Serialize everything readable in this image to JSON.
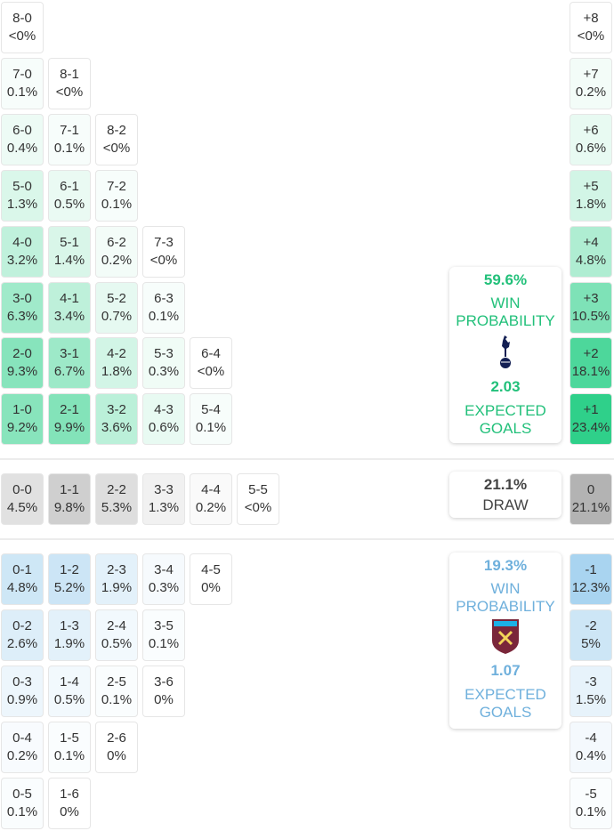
{
  "colors": {
    "home": "#2fd08a",
    "home_text": "#22c07a",
    "draw": "#b3b3b3",
    "away": "#a9d4f0",
    "away_text": "#6fb0dc"
  },
  "home_rows": [
    [
      [
        "8-0",
        "<0%",
        0
      ]
    ],
    [
      [
        "7-0",
        "0.1%",
        0.1
      ],
      [
        "8-1",
        "<0%",
        0
      ]
    ],
    [
      [
        "6-0",
        "0.4%",
        0.4
      ],
      [
        "7-1",
        "0.1%",
        0.1
      ],
      [
        "8-2",
        "<0%",
        0
      ]
    ],
    [
      [
        "5-0",
        "1.3%",
        1.3
      ],
      [
        "6-1",
        "0.5%",
        0.5
      ],
      [
        "7-2",
        "0.1%",
        0.1
      ]
    ],
    [
      [
        "4-0",
        "3.2%",
        3.2
      ],
      [
        "5-1",
        "1.4%",
        1.4
      ],
      [
        "6-2",
        "0.2%",
        0.2
      ],
      [
        "7-3",
        "<0%",
        0
      ]
    ],
    [
      [
        "3-0",
        "6.3%",
        6.3
      ],
      [
        "4-1",
        "3.4%",
        3.4
      ],
      [
        "5-2",
        "0.7%",
        0.7
      ],
      [
        "6-3",
        "0.1%",
        0.1
      ]
    ],
    [
      [
        "2-0",
        "9.3%",
        9.3
      ],
      [
        "3-1",
        "6.7%",
        6.7
      ],
      [
        "4-2",
        "1.8%",
        1.8
      ],
      [
        "5-3",
        "0.3%",
        0.3
      ],
      [
        "6-4",
        "<0%",
        0
      ]
    ],
    [
      [
        "1-0",
        "9.2%",
        9.2
      ],
      [
        "2-1",
        "9.9%",
        9.9
      ],
      [
        "3-2",
        "3.6%",
        3.6
      ],
      [
        "4-3",
        "0.6%",
        0.6
      ],
      [
        "5-4",
        "0.1%",
        0.1
      ]
    ]
  ],
  "home_margins": [
    [
      "+8",
      "<0%",
      0
    ],
    [
      "+7",
      "0.2%",
      0.2
    ],
    [
      "+6",
      "0.6%",
      0.6
    ],
    [
      "+5",
      "1.8%",
      1.8
    ],
    [
      "+4",
      "4.8%",
      4.8
    ],
    [
      "+3",
      "10.5%",
      10.5
    ],
    [
      "+2",
      "18.1%",
      18.1
    ],
    [
      "+1",
      "23.4%",
      23.4
    ]
  ],
  "draw_row": [
    [
      "0-0",
      "4.5%",
      4.5
    ],
    [
      "1-1",
      "9.8%",
      9.8
    ],
    [
      "2-2",
      "5.3%",
      5.3
    ],
    [
      "3-3",
      "1.3%",
      1.3
    ],
    [
      "4-4",
      "0.2%",
      0.2
    ],
    [
      "5-5",
      "<0%",
      0
    ]
  ],
  "draw_margin": [
    "0",
    "21.1%",
    21.1
  ],
  "away_rows": [
    [
      [
        "0-1",
        "4.8%",
        4.8
      ],
      [
        "1-2",
        "5.2%",
        5.2
      ],
      [
        "2-3",
        "1.9%",
        1.9
      ],
      [
        "3-4",
        "0.3%",
        0.3
      ],
      [
        "4-5",
        "0%",
        0
      ]
    ],
    [
      [
        "0-2",
        "2.6%",
        2.6
      ],
      [
        "1-3",
        "1.9%",
        1.9
      ],
      [
        "2-4",
        "0.5%",
        0.5
      ],
      [
        "3-5",
        "0.1%",
        0.1
      ]
    ],
    [
      [
        "0-3",
        "0.9%",
        0.9
      ],
      [
        "1-4",
        "0.5%",
        0.5
      ],
      [
        "2-5",
        "0.1%",
        0.1
      ],
      [
        "3-6",
        "0%",
        0
      ]
    ],
    [
      [
        "0-4",
        "0.2%",
        0.2
      ],
      [
        "1-5",
        "0.1%",
        0.1
      ],
      [
        "2-6",
        "0%",
        0
      ]
    ],
    [
      [
        "0-5",
        "0.1%",
        0.1
      ],
      [
        "1-6",
        "0%",
        0
      ]
    ]
  ],
  "away_margins": [
    [
      "-1",
      "12.3%",
      12.3
    ],
    [
      "-2",
      "5%",
      5
    ],
    [
      "-3",
      "1.5%",
      1.5
    ],
    [
      "-4",
      "0.4%",
      0.4
    ],
    [
      "-5",
      "0.1%",
      0.1
    ]
  ],
  "home_summary": {
    "win_pct": "59.6%",
    "win_label_1": "WIN",
    "win_label_2": "PROBABILITY",
    "badge": "tottenham-crest-icon",
    "xg": "2.03",
    "xg_label_1": "EXPECTED",
    "xg_label_2": "GOALS"
  },
  "draw_summary": {
    "pct": "21.1%",
    "label": "DRAW"
  },
  "away_summary": {
    "win_pct": "19.3%",
    "win_label_1": "WIN",
    "win_label_2": "PROBABILITY",
    "badge": "west-ham-crest-icon",
    "badge_text": "WEST HAM UNITED",
    "xg": "1.07",
    "xg_label_1": "EXPECTED",
    "xg_label_2": "GOALS"
  }
}
